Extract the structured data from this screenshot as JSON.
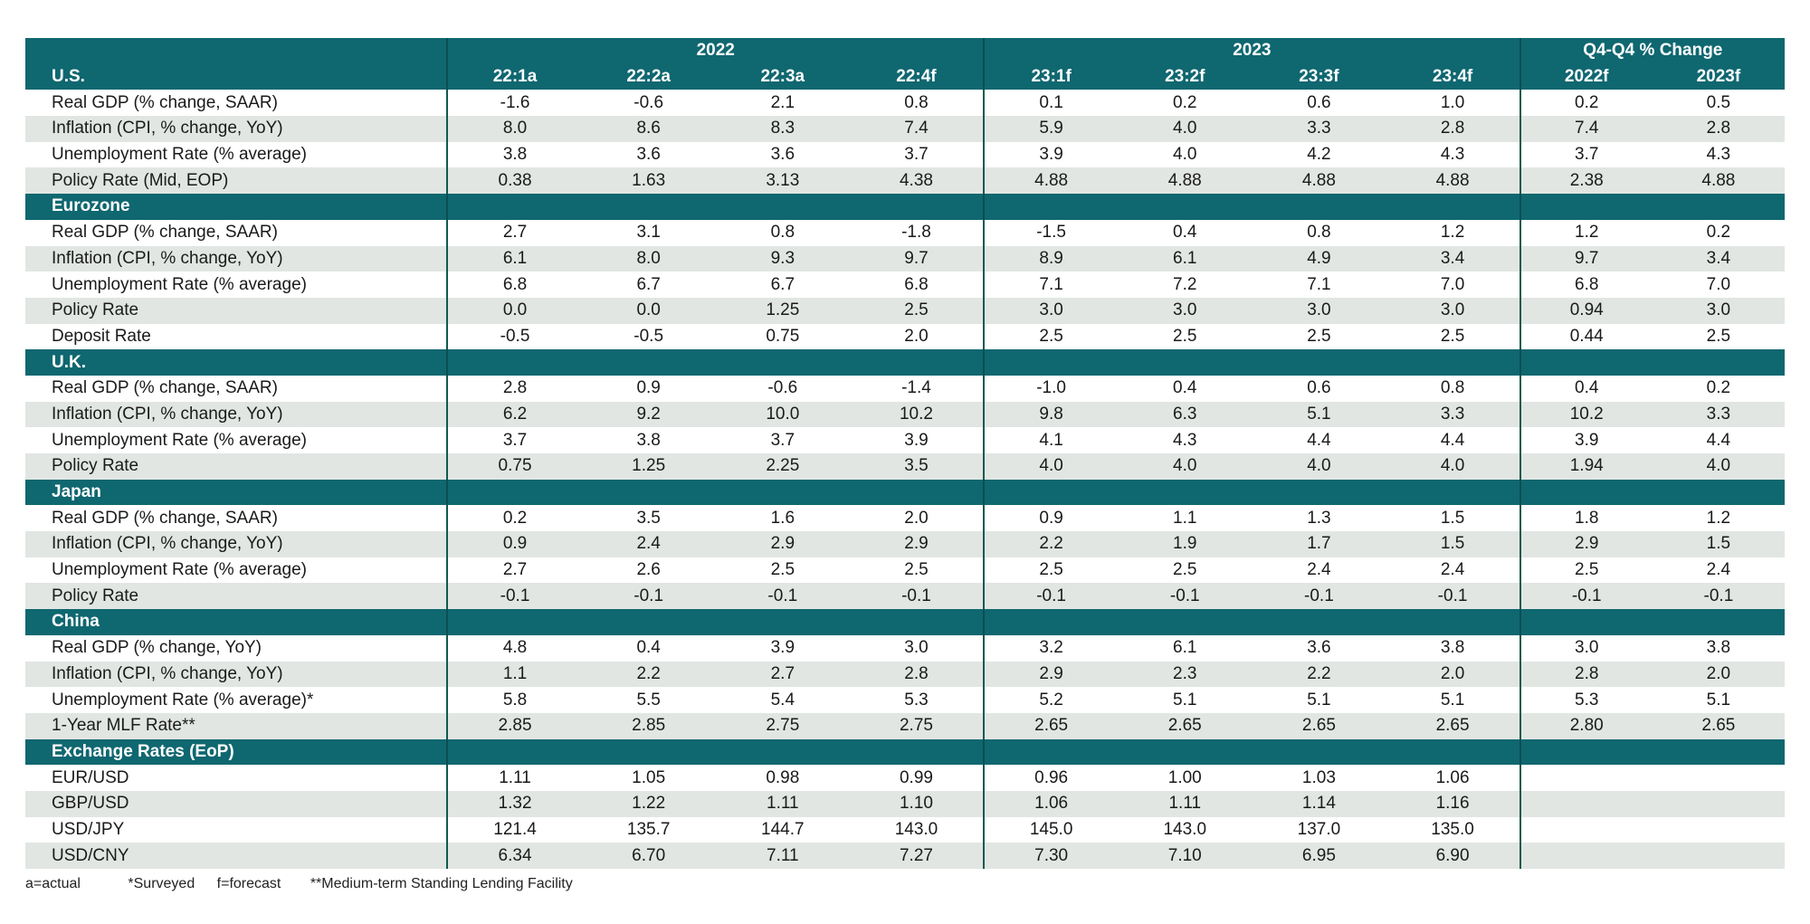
{
  "header": {
    "region_label": "U.S.",
    "groups": [
      "2022",
      "2023",
      "Q4-Q4 % Change"
    ],
    "columns": [
      "22:1a",
      "22:2a",
      "22:3a",
      "22:4f",
      "23:1f",
      "23:2f",
      "23:3f",
      "23:4f",
      "2022f",
      "2023f"
    ]
  },
  "sections": [
    {
      "title": "",
      "rows": [
        {
          "label": "Real GDP (% change, SAAR)",
          "values": [
            "-1.6",
            "-0.6",
            "2.1",
            "0.8",
            "0.1",
            "0.2",
            "0.6",
            "1.0",
            "0.2",
            "0.5"
          ]
        },
        {
          "label": "Inflation (CPI, % change, YoY)",
          "values": [
            "8.0",
            "8.6",
            "8.3",
            "7.4",
            "5.9",
            "4.0",
            "3.3",
            "2.8",
            "7.4",
            "2.8"
          ]
        },
        {
          "label": "Unemployment Rate (% average)",
          "values": [
            "3.8",
            "3.6",
            "3.6",
            "3.7",
            "3.9",
            "4.0",
            "4.2",
            "4.3",
            "3.7",
            "4.3"
          ]
        },
        {
          "label": "Policy Rate (Mid, EOP)",
          "values": [
            "0.38",
            "1.63",
            "3.13",
            "4.38",
            "4.88",
            "4.88",
            "4.88",
            "4.88",
            "2.38",
            "4.88"
          ]
        }
      ]
    },
    {
      "title": "Eurozone",
      "rows": [
        {
          "label": "Real GDP (% change, SAAR)",
          "values": [
            "2.7",
            "3.1",
            "0.8",
            "-1.8",
            "-1.5",
            "0.4",
            "0.8",
            "1.2",
            "1.2",
            "0.2"
          ]
        },
        {
          "label": "Inflation (CPI, % change, YoY)",
          "values": [
            "6.1",
            "8.0",
            "9.3",
            "9.7",
            "8.9",
            "6.1",
            "4.9",
            "3.4",
            "9.7",
            "3.4"
          ]
        },
        {
          "label": "Unemployment Rate (% average)",
          "values": [
            "6.8",
            "6.7",
            "6.7",
            "6.8",
            "7.1",
            "7.2",
            "7.1",
            "7.0",
            "6.8",
            "7.0"
          ]
        },
        {
          "label": "Policy Rate",
          "values": [
            "0.0",
            "0.0",
            "1.25",
            "2.5",
            "3.0",
            "3.0",
            "3.0",
            "3.0",
            "0.94",
            "3.0"
          ]
        },
        {
          "label": "Deposit Rate",
          "values": [
            "-0.5",
            "-0.5",
            "0.75",
            "2.0",
            "2.5",
            "2.5",
            "2.5",
            "2.5",
            "0.44",
            "2.5"
          ]
        }
      ]
    },
    {
      "title": "U.K.",
      "rows": [
        {
          "label": "Real GDP (% change, SAAR)",
          "values": [
            "2.8",
            "0.9",
            "-0.6",
            "-1.4",
            "-1.0",
            "0.4",
            "0.6",
            "0.8",
            "0.4",
            "0.2"
          ]
        },
        {
          "label": "Inflation (CPI, % change, YoY)",
          "values": [
            "6.2",
            "9.2",
            "10.0",
            "10.2",
            "9.8",
            "6.3",
            "5.1",
            "3.3",
            "10.2",
            "3.3"
          ]
        },
        {
          "label": "Unemployment Rate (% average)",
          "values": [
            "3.7",
            "3.8",
            "3.7",
            "3.9",
            "4.1",
            "4.3",
            "4.4",
            "4.4",
            "3.9",
            "4.4"
          ]
        },
        {
          "label": "Policy Rate",
          "values": [
            "0.75",
            "1.25",
            "2.25",
            "3.5",
            "4.0",
            "4.0",
            "4.0",
            "4.0",
            "1.94",
            "4.0"
          ]
        }
      ]
    },
    {
      "title": "Japan",
      "rows": [
        {
          "label": "Real GDP (% change, SAAR)",
          "values": [
            "0.2",
            "3.5",
            "1.6",
            "2.0",
            "0.9",
            "1.1",
            "1.3",
            "1.5",
            "1.8",
            "1.2"
          ]
        },
        {
          "label": "Inflation (CPI, % change, YoY)",
          "values": [
            "0.9",
            "2.4",
            "2.9",
            "2.9",
            "2.2",
            "1.9",
            "1.7",
            "1.5",
            "2.9",
            "1.5"
          ]
        },
        {
          "label": "Unemployment Rate (% average)",
          "values": [
            "2.7",
            "2.6",
            "2.5",
            "2.5",
            "2.5",
            "2.5",
            "2.4",
            "2.4",
            "2.5",
            "2.4"
          ]
        },
        {
          "label": "Policy Rate",
          "values": [
            "-0.1",
            "-0.1",
            "-0.1",
            "-0.1",
            "-0.1",
            "-0.1",
            "-0.1",
            "-0.1",
            "-0.1",
            "-0.1"
          ]
        }
      ]
    },
    {
      "title": "China",
      "rows": [
        {
          "label": "Real GDP (% change, YoY)",
          "values": [
            "4.8",
            "0.4",
            "3.9",
            "3.0",
            "3.2",
            "6.1",
            "3.6",
            "3.8",
            "3.0",
            "3.8"
          ]
        },
        {
          "label": "Inflation (CPI, % change, YoY)",
          "values": [
            "1.1",
            "2.2",
            "2.7",
            "2.8",
            "2.9",
            "2.3",
            "2.2",
            "2.0",
            "2.8",
            "2.0"
          ]
        },
        {
          "label": "Unemployment Rate (% average)*",
          "values": [
            "5.8",
            "5.5",
            "5.4",
            "5.3",
            "5.2",
            "5.1",
            "5.1",
            "5.1",
            "5.3",
            "5.1"
          ]
        },
        {
          "label": "1-Year MLF Rate**",
          "values": [
            "2.85",
            "2.85",
            "2.75",
            "2.75",
            "2.65",
            "2.65",
            "2.65",
            "2.65",
            "2.80",
            "2.65"
          ]
        }
      ]
    },
    {
      "title": "Exchange Rates (EoP)",
      "rows": [
        {
          "label": "EUR/USD",
          "values": [
            "1.11",
            "1.05",
            "0.98",
            "0.99",
            "0.96",
            "1.00",
            "1.03",
            "1.06",
            "",
            ""
          ]
        },
        {
          "label": "GBP/USD",
          "values": [
            "1.32",
            "1.22",
            "1.11",
            "1.10",
            "1.06",
            "1.11",
            "1.14",
            "1.16",
            "",
            ""
          ]
        },
        {
          "label": "USD/JPY",
          "values": [
            "121.4",
            "135.7",
            "144.7",
            "143.0",
            "145.0",
            "143.0",
            "137.0",
            "135.0",
            "",
            ""
          ]
        },
        {
          "label": "USD/CNY",
          "values": [
            "6.34",
            "6.70",
            "7.11",
            "7.27",
            "7.30",
            "7.10",
            "6.95",
            "6.90",
            "",
            ""
          ]
        }
      ]
    }
  ],
  "footnotes": [
    "a=actual",
    "*Surveyed",
    "f=forecast",
    "**Medium-term Standing Lending Facility"
  ]
}
